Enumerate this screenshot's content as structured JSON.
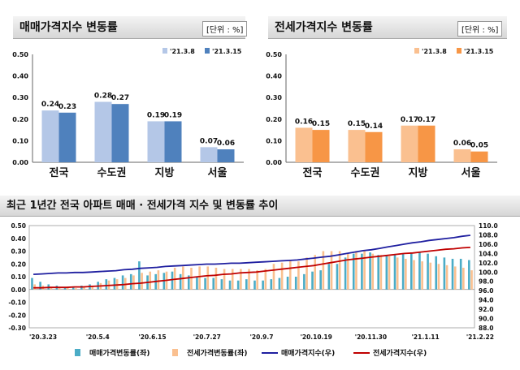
{
  "left_panel": {
    "title": "매매가격지수 변동률",
    "unit": "[단위 : %]"
  },
  "right_panel": {
    "title": "전세가격지수 변동률",
    "unit": "[단위 : %]"
  },
  "bottom_panel": {
    "title": "최근 1년간 전국 아파트 매매 · 전세가격 지수 및 변동률 추이"
  },
  "colors": {
    "left_prev": "#b4c7e7",
    "left_curr": "#4f81bd",
    "right_prev": "#fac090",
    "right_curr": "#f79646",
    "sale_bar": "#4bacc6",
    "rent_bar": "#fac090",
    "sale_line": "#1f1fa0",
    "rent_line": "#c00000"
  },
  "chart_data": [
    {
      "type": "bar",
      "title": "매매가격지수 변동률",
      "categories": [
        "전국",
        "수도권",
        "지방",
        "서울"
      ],
      "series": [
        {
          "name": "'21.3.8",
          "values": [
            0.24,
            0.28,
            0.19,
            0.07
          ]
        },
        {
          "name": "'21.3.15",
          "values": [
            0.23,
            0.27,
            0.19,
            0.06
          ]
        }
      ],
      "ylim": [
        0,
        0.5
      ],
      "yticks": [
        "0.00",
        "0.10",
        "0.20",
        "0.30",
        "0.40",
        "0.50"
      ],
      "legend": "top-right"
    },
    {
      "type": "bar",
      "title": "전세가격지수 변동률",
      "categories": [
        "전국",
        "수도권",
        "지방",
        "서울"
      ],
      "series": [
        {
          "name": "'21.3.8",
          "values": [
            0.16,
            0.15,
            0.17,
            0.06
          ]
        },
        {
          "name": "'21.3.15",
          "values": [
            0.15,
            0.14,
            0.17,
            0.05
          ]
        }
      ],
      "ylim": [
        0,
        0.5
      ],
      "yticks": [
        "0.00",
        "0.10",
        "0.20",
        "0.30",
        "0.40",
        "0.50"
      ],
      "legend": "top-right"
    },
    {
      "type": "bar",
      "title": "최근 1년간 전국 아파트 매매 · 전세가격 지수 및 변동률 추이",
      "x_labels": [
        "'20.3.23",
        "'20.5.4",
        "'20.6.15",
        "'20.7.27",
        "'20.9.7",
        "'20.10.19",
        "'20.11.30",
        "'21.1.11",
        "'21.2.22"
      ],
      "ylim_left": [
        -0.3,
        0.5
      ],
      "yticks_left": [
        "0.50",
        "0.40",
        "0.30",
        "0.20",
        "0.10",
        "0.00",
        "-0.10",
        "-0.20",
        "-0.30"
      ],
      "ylim_right": [
        88.0,
        110.0
      ],
      "yticks_right": [
        "110.0",
        "108.0",
        "106.0",
        "104.0",
        "102.0",
        "100.0",
        "98.0",
        "96.0",
        "94.0",
        "92.0",
        "90.0",
        "88.0"
      ],
      "series": [
        {
          "name": "매매가격변동률(좌)",
          "kind": "bar",
          "values": [
            0.09,
            0.06,
            0.04,
            0.03,
            0.02,
            0.02,
            0.03,
            0.04,
            0.06,
            0.08,
            0.09,
            0.11,
            0.12,
            0.22,
            0.11,
            0.12,
            0.13,
            0.14,
            0.12,
            0.11,
            0.1,
            0.09,
            0.09,
            0.08,
            0.07,
            0.07,
            0.08,
            0.07,
            0.07,
            0.08,
            0.09,
            0.1,
            0.1,
            0.12,
            0.14,
            0.15,
            0.2,
            0.2,
            0.25,
            0.28,
            0.28,
            0.29,
            0.27,
            0.27,
            0.27,
            0.28,
            0.29,
            0.29,
            0.28,
            0.26,
            0.25,
            0.24,
            0.24,
            0.23
          ]
        },
        {
          "name": "전세가격변동률(좌)",
          "kind": "bar",
          "values": [
            0.04,
            0.03,
            0.02,
            0.01,
            0.02,
            0.01,
            0.02,
            0.03,
            0.05,
            0.07,
            0.08,
            0.09,
            0.11,
            0.13,
            0.14,
            0.15,
            0.14,
            0.17,
            0.18,
            0.17,
            0.18,
            0.18,
            0.17,
            0.16,
            0.16,
            0.16,
            0.16,
            0.15,
            0.16,
            0.2,
            0.21,
            0.23,
            0.22,
            0.25,
            0.27,
            0.3,
            0.3,
            0.3,
            0.28,
            0.3,
            0.3,
            0.28,
            0.27,
            0.26,
            0.25,
            0.24,
            0.23,
            0.22,
            0.21,
            0.2,
            0.19,
            0.18,
            0.17,
            0.15
          ]
        },
        {
          "name": "매매가격지수(우)",
          "kind": "line",
          "values": [
            99.5,
            99.6,
            99.7,
            99.8,
            99.8,
            99.9,
            99.9,
            100.0,
            100.1,
            100.2,
            100.3,
            100.5,
            100.6,
            100.8,
            100.9,
            101.0,
            101.2,
            101.3,
            101.4,
            101.5,
            101.6,
            101.7,
            101.7,
            101.8,
            101.9,
            101.9,
            102.0,
            102.1,
            102.2,
            102.3,
            102.4,
            102.5,
            102.6,
            102.8,
            103.0,
            103.2,
            103.4,
            103.7,
            104.0,
            104.3,
            104.6,
            104.8,
            105.1,
            105.4,
            105.7,
            106.0,
            106.3,
            106.5,
            106.8,
            107.0,
            107.2,
            107.4,
            107.7,
            107.9
          ]
        },
        {
          "name": "전세가격지수(우)",
          "kind": "line",
          "values": [
            96.6,
            96.6,
            96.7,
            96.7,
            96.7,
            96.8,
            96.8,
            96.9,
            97.0,
            97.1,
            97.2,
            97.3,
            97.5,
            97.6,
            97.8,
            98.0,
            98.2,
            98.4,
            98.6,
            98.8,
            99.0,
            99.2,
            99.3,
            99.5,
            99.6,
            99.8,
            99.9,
            100.0,
            100.2,
            100.4,
            100.6,
            100.8,
            101.0,
            101.2,
            101.4,
            101.7,
            102.0,
            102.3,
            102.6,
            102.8,
            103.0,
            103.2,
            103.4,
            103.6,
            103.8,
            104.0,
            104.1,
            104.3,
            104.5,
            104.7,
            104.9,
            105.0,
            105.2,
            105.3
          ]
        }
      ],
      "legend": "bottom"
    }
  ]
}
